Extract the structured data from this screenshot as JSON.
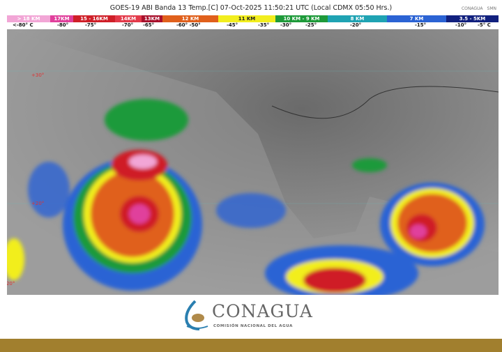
{
  "header": {
    "title": "GOES-19 ABI Banda 13 Temp.[C] 07-Oct-2025 11:50:21 UTC (Local CDMX  05:50 Hrs.)",
    "logos": [
      "CONAGUA",
      "SMN"
    ]
  },
  "scale": [
    {
      "label": "> 18 KM",
      "color": "#f2a6d6"
    },
    {
      "label": "17KM",
      "color": "#e0409c"
    },
    {
      "label": "15 - 16KM",
      "color": "#cf1f28"
    },
    {
      "label": "14KM",
      "color": "#e33a4a"
    },
    {
      "label": "13KM",
      "color": "#a8102c"
    },
    {
      "label": "12 KM",
      "color": "#e0601c"
    },
    {
      "label": "11 KM",
      "color": "#f2ee1e"
    },
    {
      "label": "10 KM - 9 KM",
      "color": "#1e9a3a"
    },
    {
      "label": "8 KM",
      "color": "#1fa3b3"
    },
    {
      "label": "7 KM",
      "color": "#2b63d4"
    },
    {
      "label": "3.5 - 5KM",
      "color": "#11207e"
    }
  ],
  "temps": [
    "<-80° C",
    "-80°",
    "-75°",
    "-70°",
    "-65°",
    "-60°  -50°",
    "-45°",
    "-35°",
    "-30°",
    "-25°",
    "-20°",
    "-15°",
    "-10°",
    "-5°  C"
  ],
  "map": {
    "lat_labels": [
      "+30°",
      "+20°"
    ],
    "lon_labels": [
      "-120°"
    ]
  },
  "logo": {
    "name": "CONAGUA",
    "subtitle": "COMISIÓN NACIONAL DEL AGUA"
  },
  "footer_color": "#a17f2e"
}
